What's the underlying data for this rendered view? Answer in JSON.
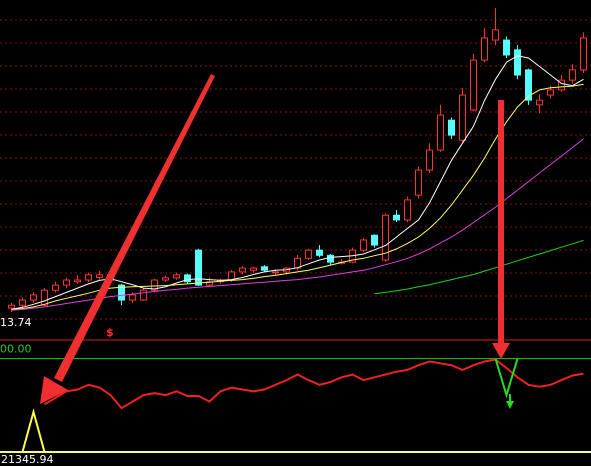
{
  "chart_data": [
    {
      "type": "candlestick",
      "ylim": [
        13.2,
        21.06
      ],
      "up_color": "#ff3232",
      "down_color": "#54ffff",
      "low_label": 13.74,
      "annotation": "$",
      "candles": [
        [
          13.83,
          13.9,
          13.95,
          13.74
        ],
        [
          13.9,
          14.02,
          14.08,
          13.83
        ],
        [
          14.02,
          14.14,
          14.21,
          13.95
        ],
        [
          13.9,
          14.25,
          14.3,
          13.88
        ],
        [
          14.25,
          14.37,
          14.45,
          14.2
        ],
        [
          14.37,
          14.49,
          14.55,
          14.3
        ],
        [
          14.45,
          14.49,
          14.6,
          14.4
        ],
        [
          14.49,
          14.61,
          14.66,
          14.44
        ],
        [
          14.55,
          14.61,
          14.7,
          14.5
        ],
        [
          14.61,
          14.49,
          14.68,
          14.42
        ],
        [
          14.37,
          14.02,
          14.4,
          13.9
        ],
        [
          14.02,
          14.14,
          14.2,
          13.95
        ],
        [
          14.02,
          14.25,
          14.3,
          14.0
        ],
        [
          14.25,
          14.49,
          14.52,
          14.2
        ],
        [
          14.49,
          14.54,
          14.6,
          14.45
        ],
        [
          14.54,
          14.61,
          14.66,
          14.5
        ],
        [
          14.61,
          14.45,
          14.64,
          14.4
        ],
        [
          15.19,
          14.37,
          15.22,
          14.35
        ],
        [
          14.37,
          14.45,
          14.55,
          14.33
        ],
        [
          14.45,
          14.49,
          14.52,
          14.4
        ],
        [
          14.49,
          14.68,
          14.72,
          14.45
        ],
        [
          14.68,
          14.77,
          14.82,
          14.62
        ],
        [
          14.72,
          14.77,
          14.8,
          14.66
        ],
        [
          14.8,
          14.72,
          14.84,
          14.68
        ],
        [
          14.66,
          14.68,
          14.74,
          14.6
        ],
        [
          14.68,
          14.77,
          14.8,
          14.62
        ],
        [
          14.77,
          15.0,
          15.08,
          14.72
        ],
        [
          15.0,
          15.19,
          15.22,
          14.96
        ],
        [
          15.19,
          15.07,
          15.31,
          15.02
        ],
        [
          15.07,
          14.91,
          15.1,
          14.85
        ],
        [
          14.91,
          14.91,
          14.98,
          14.85
        ],
        [
          14.91,
          15.19,
          15.25,
          14.88
        ],
        [
          15.19,
          15.43,
          15.48,
          15.15
        ],
        [
          15.54,
          15.31,
          15.56,
          15.25
        ],
        [
          14.96,
          16.01,
          16.05,
          14.92
        ],
        [
          16.01,
          15.9,
          16.13,
          15.85
        ],
        [
          15.9,
          16.37,
          16.45,
          15.85
        ],
        [
          16.48,
          17.07,
          17.15,
          16.4
        ],
        [
          17.07,
          17.54,
          17.7,
          17.0
        ],
        [
          17.54,
          18.36,
          18.6,
          17.5
        ],
        [
          18.24,
          17.89,
          18.3,
          17.8
        ],
        [
          17.77,
          18.83,
          19.0,
          17.7
        ],
        [
          18.48,
          19.65,
          19.8,
          18.45
        ],
        [
          19.65,
          20.17,
          20.4,
          19.6
        ],
        [
          20.12,
          20.36,
          20.87,
          20.0
        ],
        [
          20.12,
          19.77,
          20.2,
          19.7
        ],
        [
          19.89,
          19.3,
          20.0,
          19.2
        ],
        [
          19.42,
          18.71,
          19.45,
          18.6
        ],
        [
          18.6,
          18.71,
          18.85,
          18.4
        ],
        [
          18.83,
          18.95,
          19.05,
          18.75
        ],
        [
          18.95,
          19.18,
          19.3,
          18.9
        ],
        [
          19.18,
          19.42,
          19.55,
          19.1
        ],
        [
          19.42,
          20.17,
          20.3,
          19.35
        ]
      ],
      "series": [
        {
          "color": "#ffffff",
          "values": [
            13.8,
            13.85,
            13.92,
            14.0,
            14.1,
            14.2,
            14.3,
            14.4,
            14.48,
            14.52,
            14.45,
            14.38,
            14.3,
            14.28,
            14.33,
            14.42,
            14.5,
            14.52,
            14.5,
            14.48,
            14.5,
            14.55,
            14.62,
            14.68,
            14.72,
            14.73,
            14.78,
            14.87,
            14.96,
            15.02,
            15.04,
            15.06,
            15.1,
            15.2,
            15.3,
            15.5,
            15.7,
            15.9,
            16.3,
            16.8,
            17.3,
            17.7,
            18.1,
            18.7,
            19.2,
            19.6,
            19.75,
            19.7,
            19.5,
            19.3,
            19.1,
            19.05,
            19.2
          ]
        },
        {
          "color": "#ffff66",
          "values": [
            13.8,
            13.82,
            13.86,
            13.92,
            14.0,
            14.06,
            14.12,
            14.18,
            14.25,
            14.3,
            14.32,
            14.33,
            14.34,
            14.35,
            14.36,
            14.38,
            14.4,
            14.42,
            14.44,
            14.46,
            14.48,
            14.5,
            14.53,
            14.57,
            14.6,
            14.64,
            14.68,
            14.72,
            14.78,
            14.84,
            14.9,
            14.96,
            15.0,
            15.06,
            15.12,
            15.22,
            15.35,
            15.5,
            15.7,
            15.95,
            16.25,
            16.6,
            16.95,
            17.35,
            17.8,
            18.2,
            18.55,
            18.8,
            18.95,
            19.0,
            19.02,
            19.04,
            19.08
          ]
        },
        {
          "color": "#e040e0",
          "values": [
            13.78,
            13.8,
            13.83,
            13.86,
            13.9,
            13.94,
            13.98,
            14.02,
            14.06,
            14.1,
            14.13,
            14.16,
            14.19,
            14.22,
            14.25,
            14.27,
            14.3,
            14.32,
            14.34,
            14.36,
            14.38,
            14.4,
            14.42,
            14.44,
            14.46,
            14.48,
            14.5,
            14.53,
            14.56,
            14.6,
            14.64,
            14.68,
            14.72,
            14.78,
            14.85,
            14.92,
            15.0,
            15.1,
            15.22,
            15.36,
            15.5,
            15.66,
            15.84,
            16.02,
            16.2,
            16.4,
            16.6,
            16.8,
            17.0,
            17.2,
            17.4,
            17.6,
            17.8
          ]
        },
        {
          "color": "#20d020",
          "values": [
            null,
            null,
            null,
            null,
            null,
            null,
            null,
            null,
            null,
            null,
            null,
            null,
            null,
            null,
            null,
            null,
            null,
            null,
            null,
            null,
            null,
            null,
            null,
            null,
            null,
            null,
            null,
            null,
            null,
            null,
            null,
            null,
            null,
            14.17,
            14.2,
            14.24,
            14.28,
            14.33,
            14.38,
            14.44,
            14.5,
            14.56,
            14.62,
            14.7,
            14.78,
            14.86,
            14.94,
            15.02,
            15.1,
            15.18,
            15.26,
            15.34,
            15.42
          ]
        }
      ]
    },
    {
      "type": "line",
      "ylim": [
        0,
        120
      ],
      "yticks": [
        {
          "value": 100,
          "label": "00.00"
        }
      ],
      "bottom_value": 21345.94,
      "series": [
        {
          "color": "#ee2222",
          "values": [
            null,
            null,
            null,
            51,
            58,
            65,
            67,
            72,
            69,
            61,
            47,
            54,
            61,
            63,
            61,
            65,
            60,
            60,
            54,
            65,
            69,
            67,
            65,
            67,
            72,
            77,
            83,
            77,
            72,
            75,
            80,
            83,
            77,
            80,
            83,
            86,
            88,
            93,
            97,
            95,
            93,
            88,
            93,
            97,
            99,
            90,
            80,
            72,
            70,
            72,
            77,
            82,
            84
          ]
        },
        {
          "color": "#ffff44",
          "values": [
            null,
            0,
            43,
            0,
            null,
            null,
            null,
            null,
            null,
            null,
            null,
            null,
            null,
            null,
            null,
            null,
            null,
            null,
            null,
            null,
            null,
            null,
            null,
            null,
            null,
            null,
            null,
            null,
            null,
            null,
            null,
            null,
            null,
            null,
            null,
            null,
            null,
            null,
            null,
            null,
            null,
            null,
            null,
            null,
            null,
            null,
            null,
            null,
            null,
            null,
            null,
            null,
            null
          ]
        },
        {
          "color": "#22dd22",
          "values": [
            null,
            null,
            null,
            null,
            null,
            null,
            null,
            null,
            null,
            null,
            null,
            null,
            null,
            null,
            null,
            null,
            null,
            null,
            null,
            null,
            null,
            null,
            null,
            null,
            null,
            null,
            null,
            null,
            null,
            null,
            null,
            null,
            null,
            null,
            null,
            null,
            null,
            null,
            null,
            null,
            null,
            null,
            null,
            null,
            100,
            61,
            100,
            null,
            null,
            null,
            null,
            null,
            null
          ]
        }
      ]
    }
  ]
}
